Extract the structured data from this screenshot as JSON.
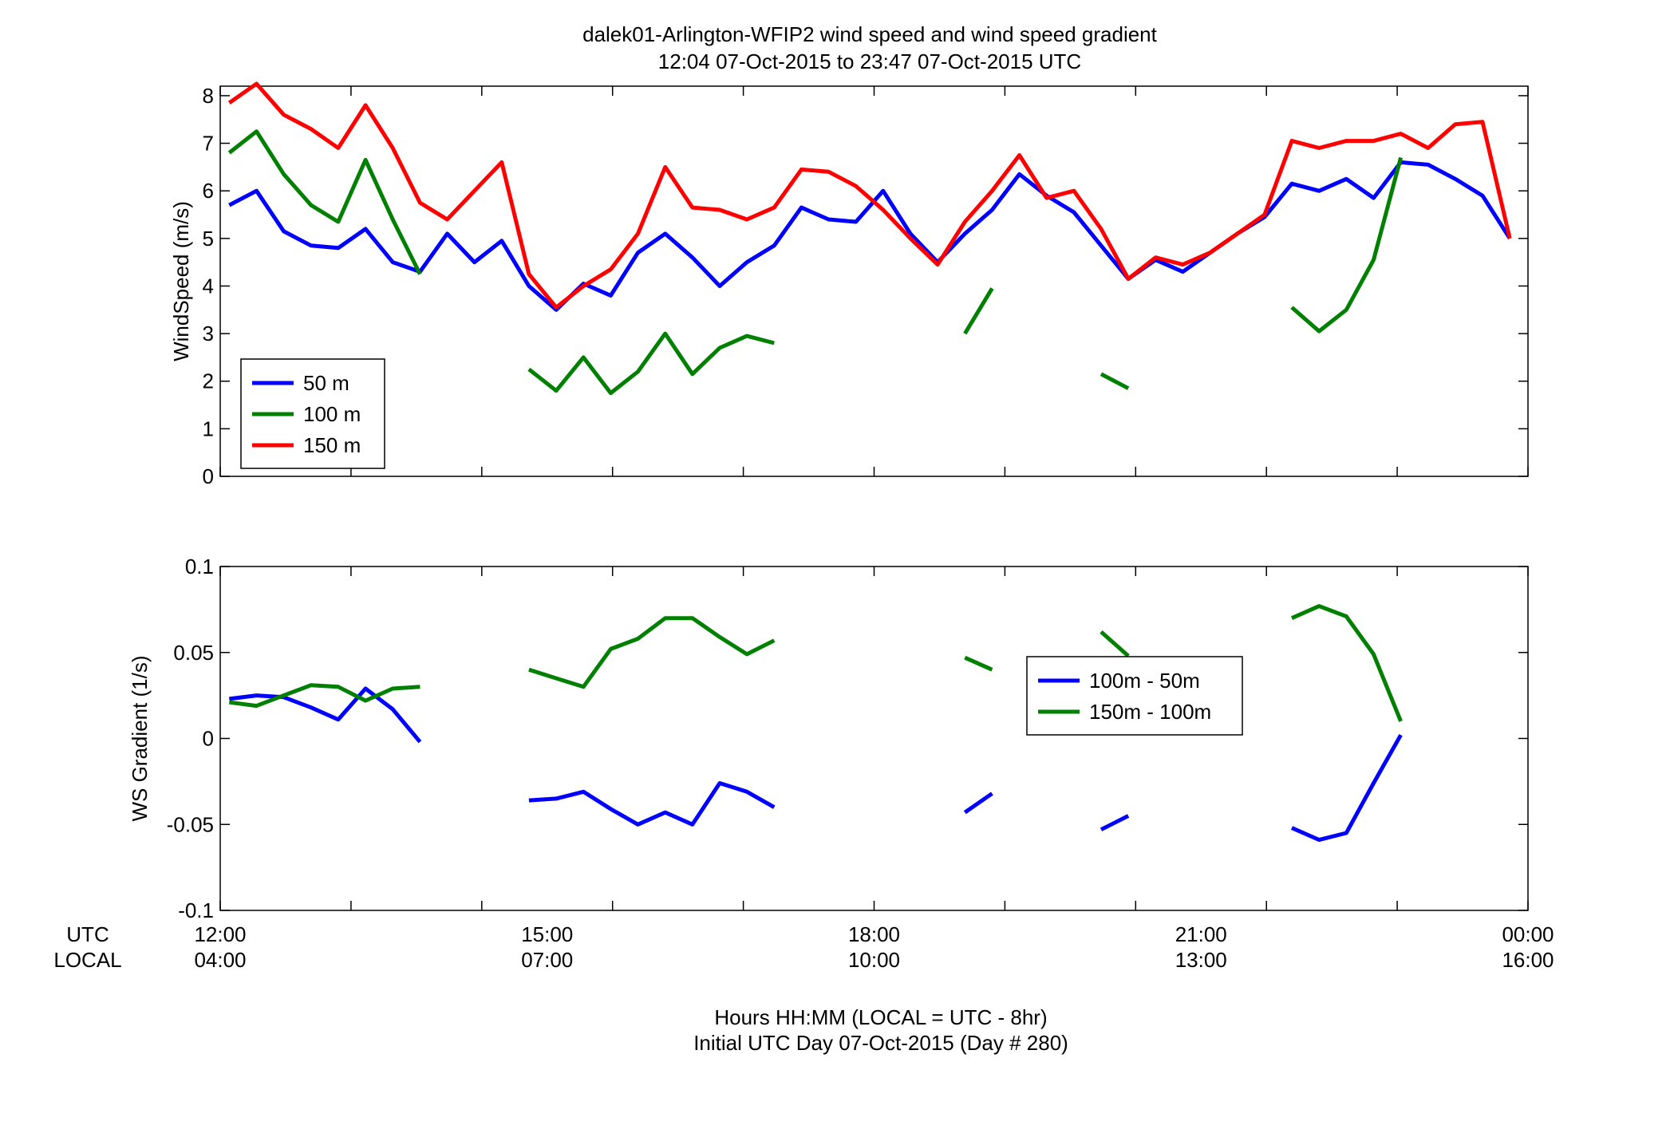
{
  "title": {
    "line1": "dalek01-Arlington-WFIP2  wind speed and wind speed gradient",
    "line2": "12:04 07-Oct-2015 to 23:47 07-Oct-2015  UTC"
  },
  "xaxis": {
    "row_labels": [
      "UTC",
      "LOCAL"
    ],
    "ticks_utc": [
      "12:00",
      "15:00",
      "18:00",
      "21:00",
      "00:00"
    ],
    "ticks_local": [
      "04:00",
      "07:00",
      "10:00",
      "13:00",
      "16:00"
    ],
    "tick_hours": [
      12,
      15,
      18,
      21,
      24
    ],
    "minor_step_hours": 1.2,
    "range_hours": [
      12,
      24
    ],
    "footer_line1": "Hours HH:MM  (LOCAL = UTC - 8hr)",
    "footer_line2": "Initial UTC Day 07-Oct-2015 (Day # 280)"
  },
  "chart_data": [
    {
      "type": "line",
      "ylabel": "WindSpeed (m/s)",
      "ylim": [
        0,
        8.2
      ],
      "yticks": [
        0,
        1,
        2,
        3,
        4,
        5,
        6,
        7,
        8
      ],
      "ytick_labels": [
        "0",
        "1",
        "2",
        "3",
        "4",
        "5",
        "6",
        "7",
        "8"
      ],
      "grid": false,
      "legend": "bottom-left",
      "x": [
        12.083,
        12.333,
        12.583,
        12.833,
        13.083,
        13.333,
        13.583,
        13.833,
        14.083,
        14.333,
        14.583,
        14.833,
        15.083,
        15.333,
        15.583,
        15.833,
        16.083,
        16.333,
        16.583,
        16.833,
        17.083,
        17.333,
        17.583,
        17.833,
        18.083,
        18.333,
        18.583,
        18.833,
        19.083,
        19.333,
        19.583,
        19.833,
        20.083,
        20.333,
        20.583,
        20.833,
        21.083,
        21.333,
        21.583,
        21.833,
        22.083,
        22.333,
        22.583,
        22.833,
        23.083,
        23.333,
        23.583,
        23.833
      ],
      "series": [
        {
          "name": "50 m",
          "color": "#0000ff",
          "values": [
            5.7,
            6.0,
            5.15,
            4.85,
            4.8,
            5.2,
            4.5,
            4.3,
            5.1,
            4.5,
            4.95,
            4.0,
            3.5,
            4.05,
            3.8,
            4.7,
            5.1,
            4.6,
            4.0,
            4.5,
            4.85,
            5.65,
            5.4,
            5.35,
            6.0,
            5.1,
            4.5,
            5.1,
            5.6,
            6.35,
            5.9,
            5.55,
            4.85,
            4.15,
            4.55,
            4.3,
            4.7,
            5.1,
            5.45,
            6.15,
            6.0,
            6.25,
            5.85,
            6.6,
            6.55,
            6.25,
            5.9,
            5.0
          ]
        },
        {
          "name": "100 m",
          "color": "#008000",
          "values": [
            6.8,
            7.25,
            6.35,
            5.7,
            5.35,
            6.65,
            5.4,
            4.25,
            null,
            null,
            null,
            2.25,
            1.8,
            2.5,
            1.75,
            2.2,
            3.0,
            2.15,
            2.7,
            2.95,
            2.8,
            null,
            null,
            null,
            null,
            null,
            null,
            3.0,
            3.95,
            null,
            null,
            null,
            2.15,
            1.85,
            null,
            null,
            null,
            null,
            null,
            3.55,
            3.05,
            3.5,
            4.55,
            6.7,
            null,
            null,
            null,
            null
          ]
        },
        {
          "name": "150 m",
          "color": "#ff0000",
          "values": [
            7.85,
            8.25,
            7.6,
            7.3,
            6.9,
            7.8,
            6.9,
            5.75,
            5.4,
            6.0,
            6.6,
            4.25,
            3.55,
            4.0,
            4.35,
            5.1,
            6.5,
            5.65,
            5.6,
            5.4,
            5.65,
            6.45,
            6.4,
            6.1,
            5.6,
            5.0,
            4.45,
            5.35,
            6.0,
            6.75,
            5.85,
            6.0,
            5.2,
            4.15,
            4.6,
            4.45,
            4.7,
            5.1,
            5.5,
            7.05,
            6.9,
            7.05,
            7.05,
            7.2,
            6.9,
            7.4,
            7.45,
            5.0
          ]
        }
      ]
    },
    {
      "type": "line",
      "ylabel": "WS Gradient (1/s)",
      "ylim": [
        -0.1,
        0.1
      ],
      "yticks": [
        -0.1,
        -0.05,
        0,
        0.05,
        0.1
      ],
      "ytick_labels": [
        "-0.1",
        "-0.05",
        "0",
        "0.05",
        "0.1"
      ],
      "grid": false,
      "legend": "center-right",
      "x": [
        12.083,
        12.333,
        12.583,
        12.833,
        13.083,
        13.333,
        13.583,
        13.833,
        14.083,
        14.333,
        14.583,
        14.833,
        15.083,
        15.333,
        15.583,
        15.833,
        16.083,
        16.333,
        16.583,
        16.833,
        17.083,
        17.333,
        17.583,
        17.833,
        18.083,
        18.333,
        18.583,
        18.833,
        19.083,
        19.333,
        19.583,
        19.833,
        20.083,
        20.333,
        20.583,
        20.833,
        21.083,
        21.333,
        21.583,
        21.833,
        22.083,
        22.333,
        22.583,
        22.833,
        23.083,
        23.333,
        23.583,
        23.833
      ],
      "series": [
        {
          "name": "100m - 50m",
          "color": "#0000ff",
          "values": [
            0.023,
            0.025,
            0.024,
            0.018,
            0.011,
            0.029,
            0.017,
            -0.002,
            null,
            null,
            null,
            -0.036,
            -0.035,
            -0.031,
            -0.041,
            -0.05,
            -0.043,
            -0.05,
            -0.026,
            -0.031,
            -0.04,
            null,
            null,
            null,
            null,
            null,
            null,
            -0.043,
            -0.032,
            null,
            null,
            null,
            -0.053,
            -0.045,
            null,
            null,
            null,
            null,
            null,
            -0.052,
            -0.059,
            -0.055,
            -0.026,
            0.002,
            null,
            null,
            null,
            null
          ]
        },
        {
          "name": "150m - 100m",
          "color": "#008000",
          "values": [
            0.021,
            0.019,
            0.025,
            0.031,
            0.03,
            0.022,
            0.029,
            0.03,
            null,
            null,
            null,
            0.04,
            0.035,
            0.03,
            0.052,
            0.058,
            0.07,
            0.07,
            0.059,
            0.049,
            0.057,
            null,
            null,
            null,
            null,
            null,
            null,
            0.047,
            0.04,
            null,
            null,
            null,
            0.062,
            0.048,
            null,
            null,
            null,
            null,
            null,
            0.07,
            0.077,
            0.071,
            0.049,
            0.01,
            null,
            null,
            null,
            null
          ]
        }
      ]
    }
  ]
}
